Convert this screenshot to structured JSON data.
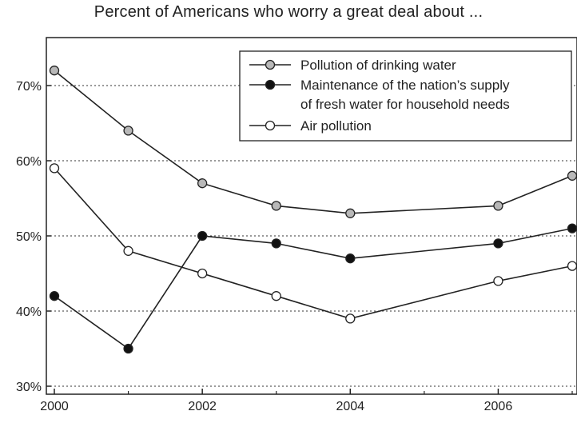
{
  "chart_data": {
    "type": "line",
    "title": "Percent of Americans who worry a great deal about ...",
    "xlabel": "",
    "ylabel": "",
    "x": [
      2000,
      2001,
      2002,
      2003,
      2004,
      2006,
      2007
    ],
    "xlim": [
      2000,
      2007
    ],
    "ylim": [
      30,
      75
    ],
    "x_ticks": [
      2000,
      2002,
      2004,
      2006
    ],
    "x_tick_labels": [
      "2000",
      "2002",
      "2004",
      "2006"
    ],
    "y_ticks": [
      30,
      40,
      50,
      60,
      70
    ],
    "y_tick_labels": [
      "30%",
      "40%",
      "50%",
      "60%",
      "70%"
    ],
    "grid": "horizontal dotted",
    "legend_position": "top-right",
    "series": [
      {
        "name": "Pollution of drinking water",
        "legend_lines": [
          "Pollution of drinking water"
        ],
        "marker_fill": "#b8b8b8",
        "values": [
          72,
          64,
          57,
          54,
          53,
          54,
          58
        ]
      },
      {
        "name": "Maintenance of the nation’s supply of fresh water for household needs",
        "legend_lines": [
          "Maintenance of the nation’s supply",
          "of fresh water for household needs"
        ],
        "marker_fill": "#111111",
        "values": [
          42,
          35,
          50,
          49,
          47,
          49,
          51
        ]
      },
      {
        "name": "Air pollution",
        "legend_lines": [
          "Air pollution"
        ],
        "marker_fill": "#ffffff",
        "values": [
          59,
          48,
          45,
          42,
          39,
          44,
          46
        ]
      }
    ]
  }
}
